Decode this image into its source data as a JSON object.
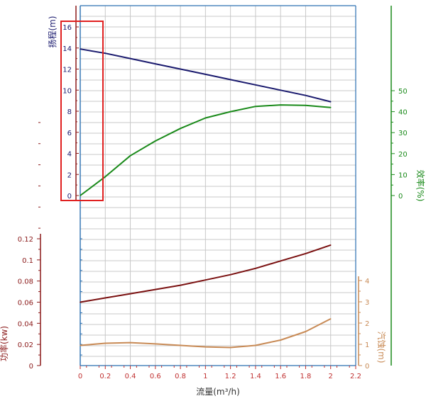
{
  "chart_data": {
    "type": "line",
    "xlabel": "流量(m³/h)",
    "x_ticks": [
      "0",
      "0.2",
      "0.4",
      "0.6",
      "0.8",
      "1",
      "1.2",
      "1.4",
      "1.6",
      "1.8",
      "2",
      "2.2"
    ],
    "xlim": [
      0,
      2.2
    ],
    "axes": {
      "head": {
        "label": "扬程(m)",
        "ticks": [
          "0",
          "2",
          "4",
          "6",
          "8",
          "10",
          "12",
          "14",
          "16"
        ],
        "range": [
          0,
          16
        ],
        "color": "#1a1a6e"
      },
      "efficiency": {
        "label": "效率(%)",
        "ticks": [
          "0",
          "10",
          "20",
          "30",
          "40",
          "50"
        ],
        "range": [
          0,
          50
        ],
        "color": "#1a8a1a"
      },
      "power": {
        "label": "功率(kw)",
        "ticks": [
          "0",
          "0.02",
          "0.04",
          "0.06",
          "0.08",
          "0.1",
          "0.12"
        ],
        "range": [
          0,
          0.12
        ],
        "color": "#8b1a1a"
      },
      "npsh": {
        "label": "汽蚀(m)",
        "ticks": [
          "0",
          "1",
          "2",
          "3",
          "4"
        ],
        "range": [
          0,
          4
        ],
        "color": "#c88a55"
      }
    },
    "series": [
      {
        "axis": "head",
        "color": "#1a1a6e",
        "x": [
          0,
          0.2,
          0.4,
          0.6,
          0.8,
          1.0,
          1.2,
          1.4,
          1.6,
          1.8,
          2.0
        ],
        "y": [
          13.9,
          13.5,
          13.0,
          12.5,
          12.0,
          11.5,
          11.0,
          10.5,
          10.0,
          9.5,
          8.9
        ]
      },
      {
        "axis": "efficiency",
        "color": "#1a8a1a",
        "x": [
          0,
          0.2,
          0.4,
          0.6,
          0.8,
          1.0,
          1.2,
          1.4,
          1.6,
          1.8,
          2.0
        ],
        "y": [
          0,
          9,
          19,
          26,
          32,
          37,
          40,
          42.5,
          43.2,
          43,
          42
        ]
      },
      {
        "axis": "power",
        "color": "#7a1010",
        "x": [
          0,
          0.2,
          0.4,
          0.6,
          0.8,
          1.0,
          1.2,
          1.4,
          1.6,
          1.8,
          2.0
        ],
        "y": [
          0.06,
          0.064,
          0.068,
          0.072,
          0.076,
          0.081,
          0.086,
          0.092,
          0.099,
          0.106,
          0.114
        ]
      },
      {
        "axis": "npsh",
        "color": "#c88a55",
        "x": [
          0,
          0.2,
          0.4,
          0.6,
          0.8,
          1.0,
          1.2,
          1.4,
          1.6,
          1.8,
          2.0
        ],
        "y": [
          0.95,
          1.05,
          1.08,
          1.02,
          0.95,
          0.88,
          0.85,
          0.95,
          1.2,
          1.6,
          2.2
        ]
      }
    ]
  },
  "highlight_color": "#e02020"
}
